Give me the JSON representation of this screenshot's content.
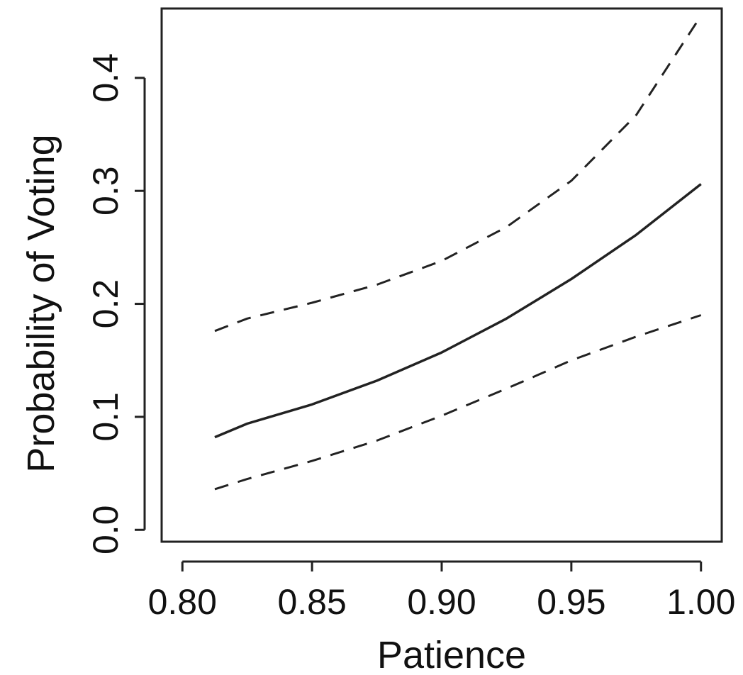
{
  "chart_data": {
    "type": "line",
    "title": "",
    "xlabel": "Patience",
    "ylabel": "Probability of Voting",
    "xlim": [
      0.792,
      1.008
    ],
    "ylim": [
      -0.0105,
      0.4614
    ],
    "x_ticks": [
      0.8,
      0.85,
      0.9,
      0.95,
      1.0
    ],
    "x_tick_labels": [
      "0.80",
      "0.85",
      "0.90",
      "0.95",
      "1.00"
    ],
    "y_ticks": [
      0.0,
      0.1,
      0.2,
      0.3,
      0.4
    ],
    "y_tick_labels": [
      "0.0",
      "0.1",
      "0.2",
      "0.3",
      "0.4"
    ],
    "grid": false,
    "legend": "none",
    "series": [
      {
        "style": "solid",
        "x": [
          0.8125,
          0.825,
          0.85,
          0.875,
          0.9,
          0.925,
          0.95,
          0.975,
          1.0
        ],
        "y": [
          0.082,
          0.094,
          0.111,
          0.132,
          0.157,
          0.187,
          0.222,
          0.261,
          0.306
        ]
      },
      {
        "style": "dashed",
        "x": [
          0.8125,
          0.825,
          0.85,
          0.875,
          0.9,
          0.925,
          0.95,
          0.975,
          1.0
        ],
        "y": [
          0.176,
          0.187,
          0.201,
          0.217,
          0.238,
          0.268,
          0.309,
          0.367,
          0.455
        ]
      },
      {
        "style": "dashed",
        "x": [
          0.8125,
          0.825,
          0.85,
          0.875,
          0.9,
          0.925,
          0.95,
          0.975,
          1.0
        ],
        "y": [
          0.036,
          0.045,
          0.061,
          0.079,
          0.101,
          0.125,
          0.15,
          0.171,
          0.19
        ]
      }
    ]
  }
}
